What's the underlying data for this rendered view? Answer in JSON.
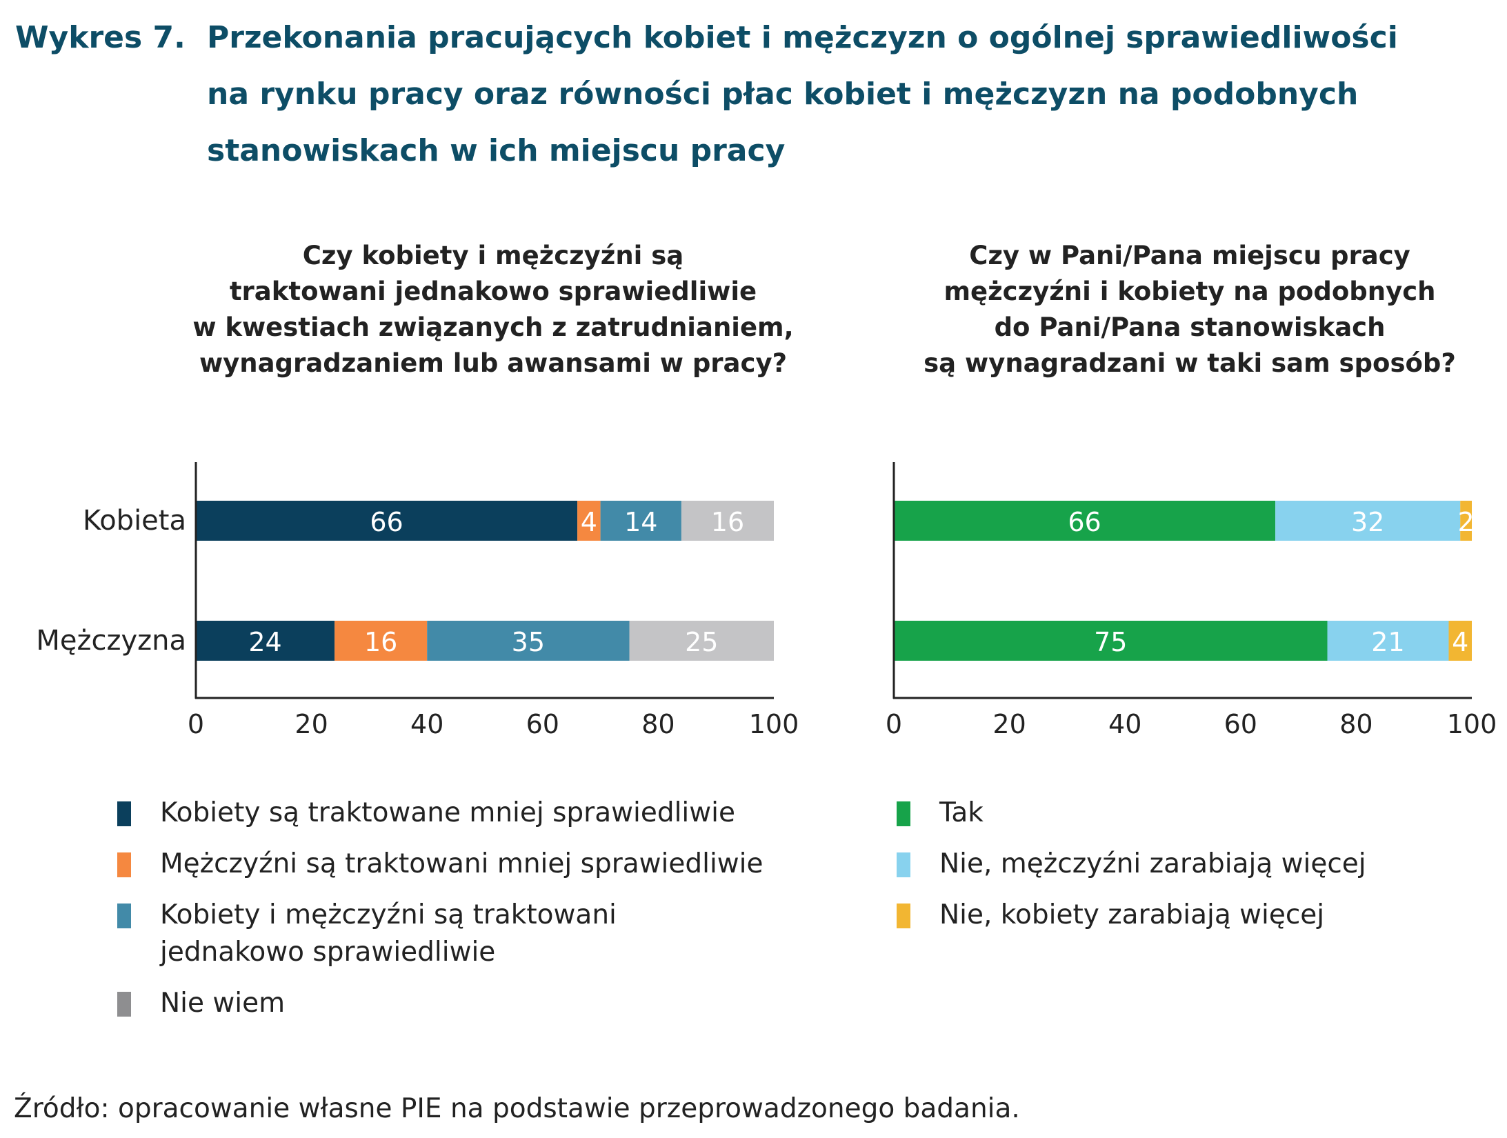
{
  "figure": {
    "number": "Wykres 7.",
    "title_lines": [
      "Przekonania pracujących kobiet i mężczyzn o ogólnej sprawiedliwości",
      "na rynku pracy oraz równości płac kobiet i mężczyzn na podobnych",
      "stanowiskach w ich miejscu pracy"
    ]
  },
  "chart_data": [
    {
      "type": "bar",
      "orientation": "horizontal",
      "stacked": true,
      "title_lines": [
        "Czy kobiety i mężczyźni są",
        "traktowani jednakowo sprawiedliwie",
        "w kwestiach związanych z zatrudnianiem,",
        "wynagradzaniem lub awansami w pracy?"
      ],
      "categories": [
        "Kobieta",
        "Mężczyzna"
      ],
      "series": [
        {
          "name": "Kobiety są traktowane mniej sprawiedliwie",
          "color": "#0b3f5c",
          "label_color": "#ffffff",
          "values": [
            66,
            24
          ]
        },
        {
          "name": "Mężczyźni są traktowani mniej sprawiedliwie",
          "color": "#f58840",
          "label_color": "#ffffff",
          "values": [
            4,
            16
          ]
        },
        {
          "name": "Kobiety i mężczyźni są traktowani jednakowo sprawiedliwie",
          "color": "#428aa8",
          "label_color": "#ffffff",
          "values": [
            14,
            35
          ]
        },
        {
          "name": "Nie wiem",
          "color": "#c4c4c6",
          "label_color": "#ffffff",
          "values": [
            16,
            25
          ]
        }
      ],
      "xlim": [
        0,
        100
      ],
      "xticks": [
        "0",
        "20",
        "40",
        "60",
        "80",
        "100"
      ],
      "legend_lines": [
        [
          "Kobiety są traktowane mniej sprawiedliwie"
        ],
        [
          "Mężczyźni są traktowani mniej sprawiedliwie"
        ],
        [
          "Kobiety i mężczyźni są traktowani",
          "jednakowo sprawiedliwie"
        ],
        [
          "Nie wiem"
        ]
      ],
      "legend_swatch_colors": [
        "#0b3f5c",
        "#f58840",
        "#428aa8",
        "#8e8e90"
      ]
    },
    {
      "type": "bar",
      "orientation": "horizontal",
      "stacked": true,
      "title_lines": [
        "Czy w Pani/Pana miejscu pracy",
        "mężczyźni i kobiety na podobnych",
        "do Pani/Pana stanowiskach",
        "są wynagradzani w taki sam sposób?"
      ],
      "categories": [
        "Kobieta",
        "Mężczyzna"
      ],
      "series": [
        {
          "name": "Tak",
          "color": "#17a34a",
          "label_color": "#ffffff",
          "values": [
            66,
            75
          ]
        },
        {
          "name": "Nie, mężczyźni zarabiają więcej",
          "color": "#88d2ee",
          "label_color": "#ffffff",
          "values": [
            32,
            21
          ]
        },
        {
          "name": "Nie, kobiety zarabiają więcej",
          "color": "#f2b632",
          "label_color": "#ffffff",
          "values": [
            2,
            4
          ]
        }
      ],
      "xlim": [
        0,
        100
      ],
      "xticks": [
        "0",
        "20",
        "40",
        "60",
        "80",
        "100"
      ],
      "legend_lines": [
        [
          "Tak"
        ],
        [
          "Nie, mężczyźni zarabiają więcej"
        ],
        [
          "Nie, kobiety zarabiają więcej"
        ]
      ],
      "legend_swatch_colors": [
        "#17a34a",
        "#88d2ee",
        "#f2b632"
      ]
    }
  ],
  "source": "Źródło: opracowanie własne PIE na podstawie przeprowadzonego badania."
}
